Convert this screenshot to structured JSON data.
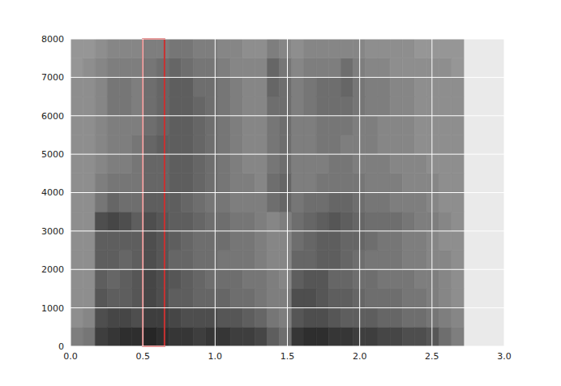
{
  "chart_data": {
    "type": "heatmap",
    "xlim": [
      0,
      3
    ],
    "ylim": [
      0,
      8000
    ],
    "xticks": [
      {
        "value": 0,
        "label": "0.0"
      },
      {
        "value": 0.5,
        "label": "0.5"
      },
      {
        "value": 1,
        "label": "1.0"
      },
      {
        "value": 1.5,
        "label": "1.5"
      },
      {
        "value": 2,
        "label": "2.0"
      },
      {
        "value": 2.5,
        "label": "2.5"
      },
      {
        "value": 3,
        "label": "3.0"
      }
    ],
    "yticks": [
      0,
      1000,
      2000,
      3000,
      4000,
      5000,
      6000,
      7000,
      8000
    ],
    "grid": true,
    "heatmap": {
      "x_edges": [
        0,
        0.085,
        0.17,
        0.255,
        0.34,
        0.425,
        0.51,
        0.595,
        0.68,
        0.765,
        0.85,
        0.935,
        1.02,
        1.105,
        1.19,
        1.275,
        1.36,
        1.445,
        1.53,
        1.615,
        1.7,
        1.785,
        1.87,
        1.955,
        2.04,
        2.125,
        2.21,
        2.295,
        2.38,
        2.465,
        2.55,
        2.635,
        2.72
      ],
      "y_edges": [
        0,
        500,
        1000,
        1500,
        2000,
        2500,
        3000,
        3500,
        4000,
        4500,
        5000,
        5500,
        6000,
        6500,
        7000,
        7500,
        8000
      ],
      "value_range": [
        0,
        1
      ],
      "cells": [
        [
          0.4,
          0.45,
          0.8,
          0.85,
          0.9,
          0.9,
          0.95,
          0.9,
          0.85,
          0.85,
          0.8,
          0.85,
          0.85,
          0.8,
          0.8,
          0.75,
          0.6,
          0.5,
          0.85,
          0.9,
          0.9,
          0.85,
          0.85,
          0.8,
          0.8,
          0.75,
          0.75,
          0.7,
          0.7,
          0.65,
          0.5,
          0.4
        ],
        [
          0.3,
          0.35,
          0.7,
          0.75,
          0.75,
          0.7,
          0.8,
          0.8,
          0.75,
          0.7,
          0.7,
          0.7,
          0.65,
          0.65,
          0.6,
          0.55,
          0.45,
          0.4,
          0.65,
          0.7,
          0.7,
          0.65,
          0.6,
          0.6,
          0.6,
          0.55,
          0.55,
          0.5,
          0.5,
          0.45,
          0.4,
          0.35
        ],
        [
          0.3,
          0.3,
          0.65,
          0.6,
          0.6,
          0.65,
          0.75,
          0.7,
          0.6,
          0.6,
          0.55,
          0.55,
          0.55,
          0.5,
          0.5,
          0.45,
          0.4,
          0.4,
          0.7,
          0.7,
          0.65,
          0.6,
          0.6,
          0.55,
          0.5,
          0.5,
          0.5,
          0.45,
          0.45,
          0.4,
          0.35,
          0.3
        ],
        [
          0.3,
          0.3,
          0.6,
          0.55,
          0.6,
          0.65,
          0.75,
          0.7,
          0.65,
          0.6,
          0.55,
          0.5,
          0.5,
          0.5,
          0.45,
          0.45,
          0.4,
          0.35,
          0.6,
          0.65,
          0.65,
          0.55,
          0.55,
          0.5,
          0.5,
          0.45,
          0.45,
          0.45,
          0.4,
          0.4,
          0.35,
          0.3
        ],
        [
          0.3,
          0.3,
          0.6,
          0.6,
          0.55,
          0.6,
          0.7,
          0.65,
          0.55,
          0.55,
          0.5,
          0.5,
          0.45,
          0.45,
          0.45,
          0.4,
          0.35,
          0.35,
          0.55,
          0.55,
          0.6,
          0.6,
          0.55,
          0.5,
          0.45,
          0.45,
          0.45,
          0.4,
          0.4,
          0.35,
          0.35,
          0.3
        ],
        [
          0.3,
          0.3,
          0.6,
          0.6,
          0.6,
          0.6,
          0.7,
          0.65,
          0.6,
          0.55,
          0.5,
          0.5,
          0.5,
          0.45,
          0.45,
          0.4,
          0.35,
          0.35,
          0.5,
          0.55,
          0.6,
          0.6,
          0.55,
          0.55,
          0.5,
          0.45,
          0.45,
          0.4,
          0.4,
          0.35,
          0.3,
          0.3
        ],
        [
          0.3,
          0.3,
          0.7,
          0.75,
          0.7,
          0.6,
          0.7,
          0.65,
          0.6,
          0.6,
          0.55,
          0.5,
          0.5,
          0.45,
          0.45,
          0.4,
          0.35,
          0.4,
          0.5,
          0.55,
          0.6,
          0.65,
          0.6,
          0.55,
          0.5,
          0.5,
          0.5,
          0.45,
          0.4,
          0.4,
          0.35,
          0.3
        ],
        [
          0.3,
          0.3,
          0.45,
          0.55,
          0.5,
          0.5,
          0.6,
          0.6,
          0.6,
          0.55,
          0.5,
          0.45,
          0.45,
          0.4,
          0.4,
          0.4,
          0.5,
          0.55,
          0.45,
          0.5,
          0.5,
          0.55,
          0.55,
          0.5,
          0.45,
          0.45,
          0.4,
          0.4,
          0.4,
          0.35,
          0.3,
          0.3
        ],
        [
          0.3,
          0.3,
          0.4,
          0.45,
          0.45,
          0.45,
          0.55,
          0.55,
          0.6,
          0.6,
          0.55,
          0.5,
          0.45,
          0.4,
          0.4,
          0.35,
          0.5,
          0.55,
          0.4,
          0.4,
          0.45,
          0.45,
          0.45,
          0.45,
          0.4,
          0.4,
          0.4,
          0.35,
          0.35,
          0.35,
          0.3,
          0.3
        ],
        [
          0.3,
          0.3,
          0.35,
          0.4,
          0.4,
          0.45,
          0.55,
          0.55,
          0.6,
          0.6,
          0.55,
          0.5,
          0.45,
          0.4,
          0.35,
          0.35,
          0.45,
          0.5,
          0.4,
          0.4,
          0.4,
          0.45,
          0.45,
          0.4,
          0.4,
          0.4,
          0.35,
          0.35,
          0.35,
          0.3,
          0.3,
          0.3
        ],
        [
          0.3,
          0.3,
          0.35,
          0.4,
          0.4,
          0.45,
          0.55,
          0.6,
          0.6,
          0.6,
          0.55,
          0.5,
          0.45,
          0.4,
          0.35,
          0.35,
          0.45,
          0.5,
          0.4,
          0.4,
          0.45,
          0.45,
          0.4,
          0.4,
          0.4,
          0.35,
          0.35,
          0.35,
          0.3,
          0.3,
          0.3,
          0.3
        ],
        [
          0.3,
          0.3,
          0.35,
          0.4,
          0.4,
          0.4,
          0.5,
          0.55,
          0.6,
          0.6,
          0.55,
          0.5,
          0.45,
          0.4,
          0.35,
          0.35,
          0.45,
          0.5,
          0.4,
          0.4,
          0.45,
          0.45,
          0.45,
          0.4,
          0.4,
          0.35,
          0.35,
          0.35,
          0.3,
          0.3,
          0.3,
          0.3
        ],
        [
          0.3,
          0.3,
          0.35,
          0.45,
          0.45,
          0.4,
          0.5,
          0.55,
          0.6,
          0.6,
          0.55,
          0.5,
          0.45,
          0.4,
          0.35,
          0.35,
          0.5,
          0.5,
          0.4,
          0.45,
          0.5,
          0.5,
          0.5,
          0.45,
          0.4,
          0.4,
          0.35,
          0.35,
          0.3,
          0.3,
          0.3,
          0.3
        ],
        [
          0.3,
          0.3,
          0.35,
          0.45,
          0.45,
          0.4,
          0.5,
          0.55,
          0.6,
          0.6,
          0.5,
          0.5,
          0.45,
          0.4,
          0.35,
          0.35,
          0.55,
          0.5,
          0.4,
          0.45,
          0.5,
          0.5,
          0.55,
          0.45,
          0.4,
          0.4,
          0.35,
          0.35,
          0.3,
          0.3,
          0.3,
          0.3
        ],
        [
          0.25,
          0.3,
          0.35,
          0.4,
          0.4,
          0.4,
          0.45,
          0.5,
          0.55,
          0.5,
          0.45,
          0.45,
          0.4,
          0.35,
          0.35,
          0.35,
          0.55,
          0.45,
          0.35,
          0.4,
          0.4,
          0.4,
          0.5,
          0.4,
          0.35,
          0.35,
          0.3,
          0.3,
          0.3,
          0.3,
          0.3,
          0.25
        ],
        [
          0.25,
          0.25,
          0.3,
          0.35,
          0.35,
          0.35,
          0.4,
          0.4,
          0.45,
          0.45,
          0.4,
          0.4,
          0.35,
          0.35,
          0.3,
          0.3,
          0.4,
          0.35,
          0.3,
          0.35,
          0.35,
          0.35,
          0.35,
          0.35,
          0.3,
          0.3,
          0.3,
          0.3,
          0.25,
          0.25,
          0.25,
          0.25
        ]
      ]
    },
    "highlight": {
      "x": [
        0.5,
        0.65
      ],
      "y": [
        0,
        8000
      ],
      "color": "#c83232"
    }
  }
}
